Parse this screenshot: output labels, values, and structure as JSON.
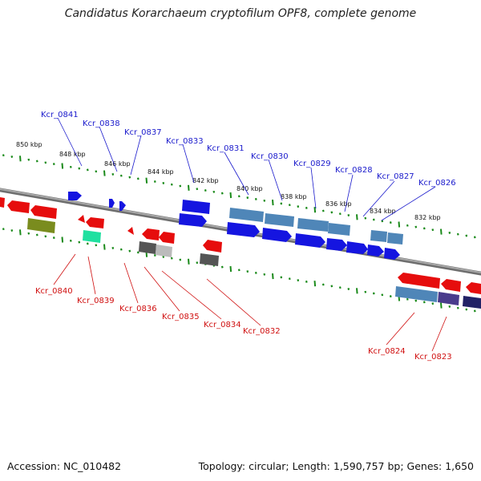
{
  "title": "Candidatus Korarchaeum cryptofilum OPF8, complete genome",
  "footer": {
    "accession": "Accession: NC_010482",
    "topology": "Topology: circular; Length: 1,590,757 bp; Genes: 1,650"
  },
  "colors": {
    "forward_label": "#1a1acc",
    "reverse_label": "#d01010",
    "forward_gene": "#1515e0",
    "reverse_gene": "#e60d0d",
    "steel_gene": "#4f86b8",
    "backbone": "#8a8a8a",
    "tick": "#1a8a1a"
  },
  "scale_labels": [
    "850 kbp",
    "848 kbp",
    "846 kbp",
    "844 kbp",
    "842 kbp",
    "840 kbp",
    "838 kbp",
    "836 kbp",
    "834 kbp",
    "832 kbp"
  ],
  "forward_genes": [
    "Kcr_0841",
    "Kcr_0838",
    "Kcr_0837",
    "Kcr_0833",
    "Kcr_0831",
    "Kcr_0830",
    "Kcr_0829",
    "Kcr_0828",
    "Kcr_0827",
    "Kcr_0826"
  ],
  "reverse_genes": [
    "Kcr_0840",
    "Kcr_0839",
    "Kcr_0836",
    "Kcr_0835",
    "Kcr_0834",
    "Kcr_0832",
    "Kcr_0824",
    "Kcr_0823"
  ]
}
